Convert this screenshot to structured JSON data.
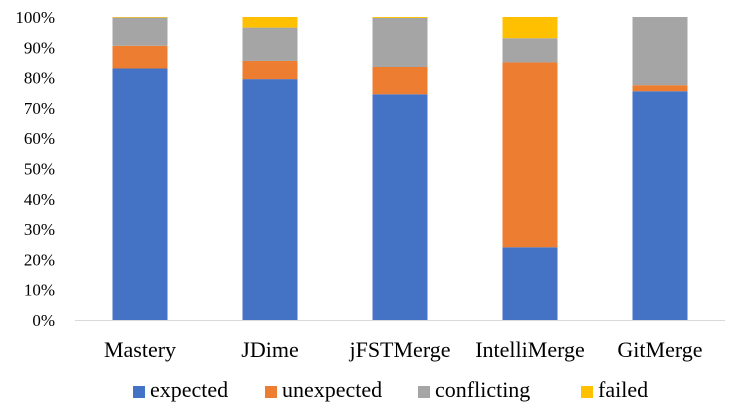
{
  "chart_data": {
    "type": "bar",
    "stacked": true,
    "percent_stacked": true,
    "categories": [
      "Mastery",
      "JDime",
      "jFSTMerge",
      "IntelliMerge",
      "GitMerge"
    ],
    "series": [
      {
        "name": "expected",
        "color": "#4472C4",
        "values": [
          83,
          79.5,
          74.5,
          24,
          75.5
        ]
      },
      {
        "name": "unexpected",
        "color": "#ED7D31",
        "values": [
          7.5,
          6,
          9,
          61,
          2
        ]
      },
      {
        "name": "conflicting",
        "color": "#A5A5A5",
        "values": [
          9.3,
          11,
          16.2,
          8,
          22.5
        ]
      },
      {
        "name": "failed",
        "color": "#FFC000",
        "values": [
          0.2,
          3.5,
          0.3,
          7,
          0
        ]
      }
    ],
    "y_ticks": [
      "0%",
      "10%",
      "20%",
      "30%",
      "40%",
      "50%",
      "60%",
      "70%",
      "80%",
      "90%",
      "100%"
    ],
    "ylim": [
      0,
      100
    ],
    "grid": false,
    "legend_position": "bottom"
  }
}
